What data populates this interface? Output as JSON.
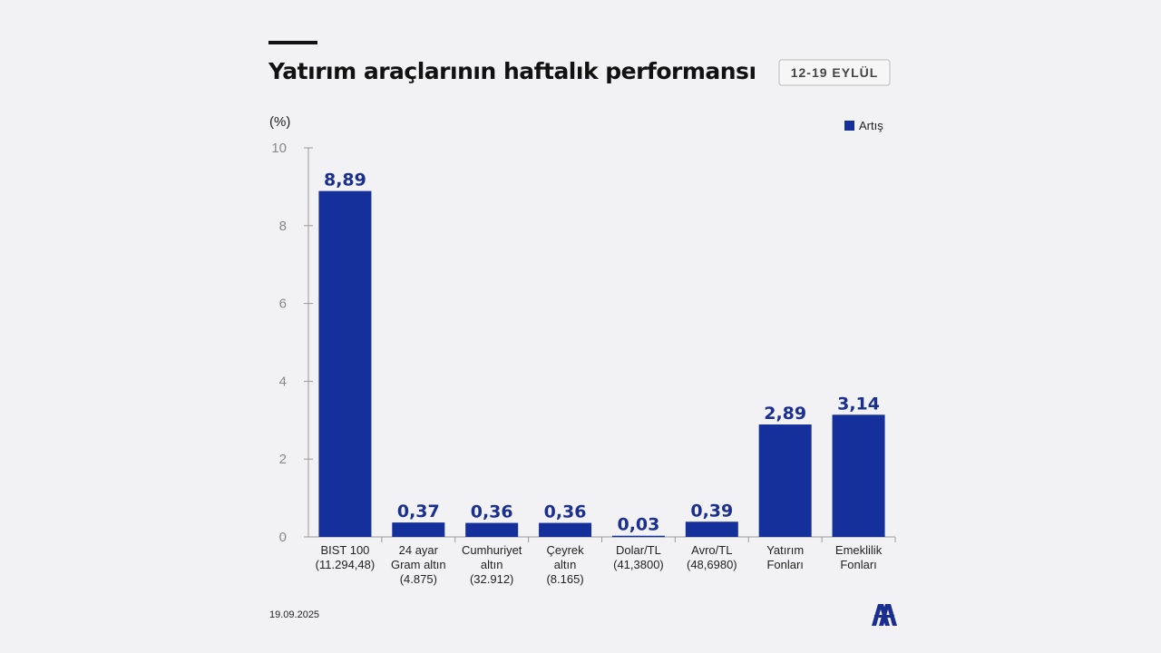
{
  "header": {
    "title": "Yatırım araçlarının haftalık performansı",
    "date_badge": "12-19 EYLÜL"
  },
  "footer": {
    "date": "19.09.2025",
    "logo_text": "AA"
  },
  "colors": {
    "bar": "#15309a",
    "label": "#1a2f8f"
  },
  "chart_data": {
    "type": "bar",
    "title": "Yatırım araçlarının haftalık performansı",
    "ylabel": "(%)",
    "ylim": [
      0,
      10
    ],
    "yticks": [
      0,
      2,
      4,
      6,
      8,
      10
    ],
    "legend": {
      "entries": [
        "Artış"
      ],
      "placement": "top-right"
    },
    "categories": [
      {
        "lines": [
          "BIST 100",
          "(11.294,48)"
        ]
      },
      {
        "lines": [
          "24 ayar",
          "Gram altın",
          "(4.875)"
        ]
      },
      {
        "lines": [
          "Cumhuriyet",
          "altın",
          "(32.912)"
        ]
      },
      {
        "lines": [
          "Çeyrek",
          "altın",
          "(8.165)"
        ]
      },
      {
        "lines": [
          "Dolar/TL",
          "(41,3800)"
        ]
      },
      {
        "lines": [
          "Avro/TL",
          "(48,6980)"
        ]
      },
      {
        "lines": [
          "Yatırım",
          "Fonları"
        ]
      },
      {
        "lines": [
          "Emeklilik",
          "Fonları"
        ]
      }
    ],
    "values": [
      8.89,
      0.37,
      0.36,
      0.36,
      0.03,
      0.39,
      2.89,
      3.14
    ],
    "value_labels": [
      "8,89",
      "0,37",
      "0,36",
      "0,36",
      "0,03",
      "0,39",
      "2,89",
      "3,14"
    ]
  }
}
